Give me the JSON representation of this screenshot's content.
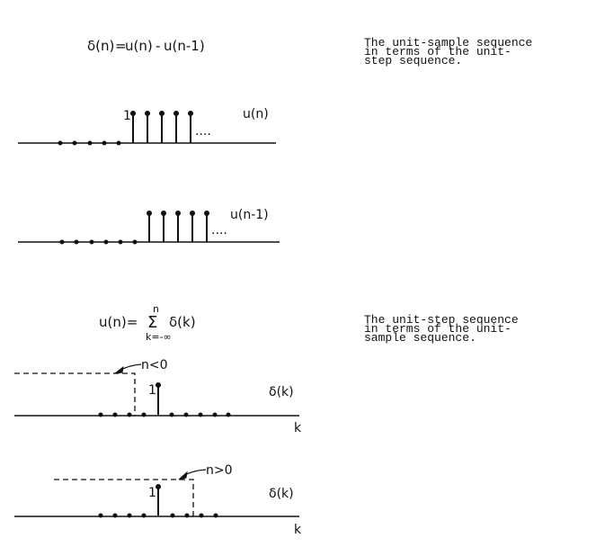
{
  "captions": [
    [
      "The unit-sample sequence",
      "in terms of the unit-",
      "step sequence."
    ],
    [
      "The unit-step sequence",
      "in terms of the unit-",
      "sample sequence."
    ]
  ],
  "equation1": {
    "lhs": "δ(n)",
    "eq": "=",
    "u1": "u(n)",
    "minus": "-",
    "u2": "u(n-1)"
  },
  "equation2": {
    "lhs": "u(n)=",
    "sum": "Σ",
    "upper": "n",
    "lower": "k=-∞",
    "term": "δ(k)"
  },
  "plot1": {
    "label": "u(n)",
    "one": "1",
    "dots": "...."
  },
  "plot2": {
    "label": "u(n-1)",
    "dots": "...."
  },
  "plot3": {
    "label": "δ(k)",
    "one": "1",
    "axis": "k",
    "annotation": "n<0"
  },
  "plot4": {
    "label": "δ(k)",
    "one": "1",
    "axis": "k",
    "annotation": "n>0"
  }
}
